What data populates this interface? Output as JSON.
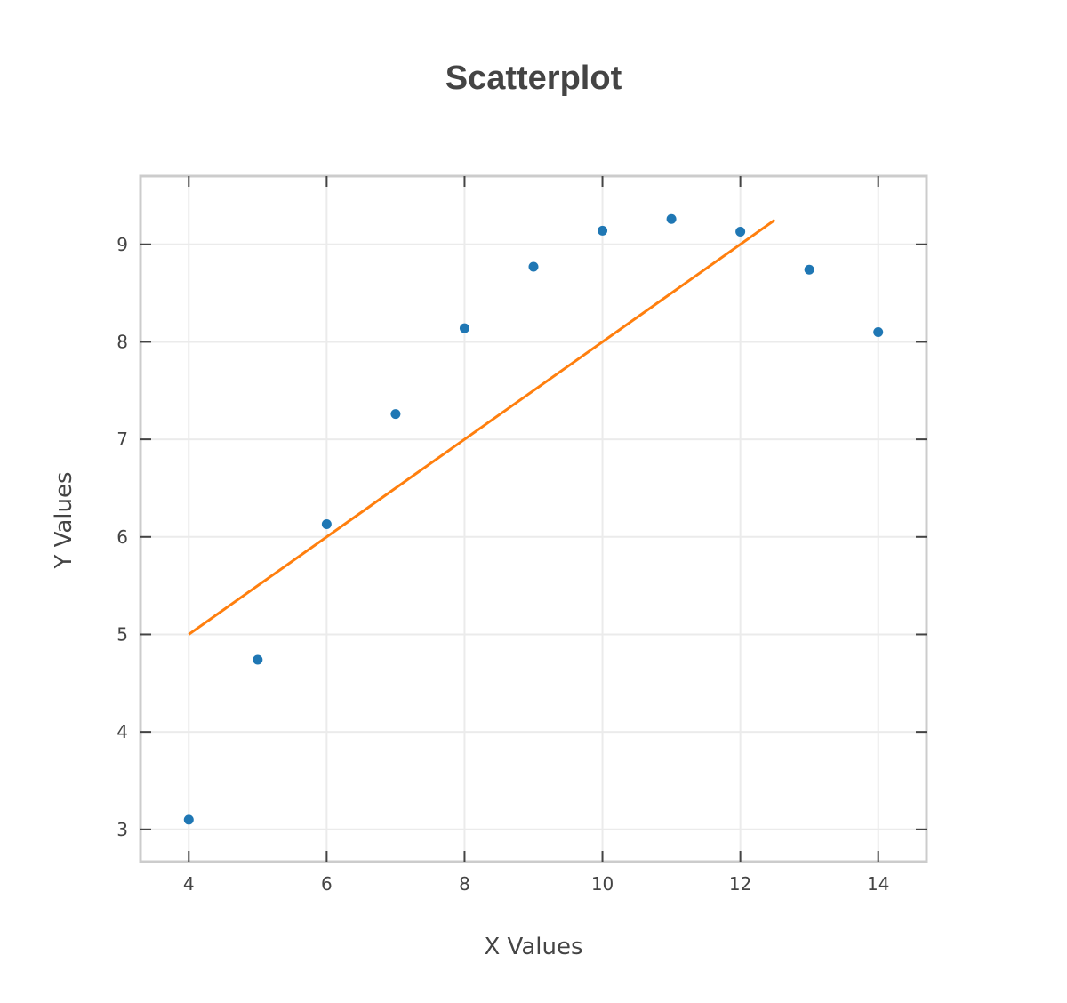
{
  "chart_data": {
    "type": "scatter",
    "title": "Scatterplot",
    "xlabel": "X Values",
    "ylabel": "Y Values",
    "xlim": [
      3.3,
      14.7
    ],
    "ylim": [
      2.67,
      9.7
    ],
    "xticks": [
      "4",
      "6",
      "8",
      "10",
      "12",
      "14"
    ],
    "yticks": [
      "3",
      "4",
      "5",
      "6",
      "7",
      "8",
      "9"
    ],
    "grid": true,
    "series": [
      {
        "type": "scatter",
        "color": "#1f77b4",
        "points": [
          {
            "x": 4,
            "y": 3.1
          },
          {
            "x": 5,
            "y": 4.74
          },
          {
            "x": 6,
            "y": 6.13
          },
          {
            "x": 7,
            "y": 7.26
          },
          {
            "x": 8,
            "y": 8.14
          },
          {
            "x": 9,
            "y": 8.77
          },
          {
            "x": 10,
            "y": 9.14
          },
          {
            "x": 11,
            "y": 9.26
          },
          {
            "x": 12,
            "y": 9.13
          },
          {
            "x": 13,
            "y": 8.74
          },
          {
            "x": 14,
            "y": 8.1
          }
        ]
      },
      {
        "type": "line",
        "color": "#ff7f0e",
        "points": [
          {
            "x": 4,
            "y": 5.0
          },
          {
            "x": 12.5,
            "y": 9.25
          }
        ]
      }
    ]
  }
}
